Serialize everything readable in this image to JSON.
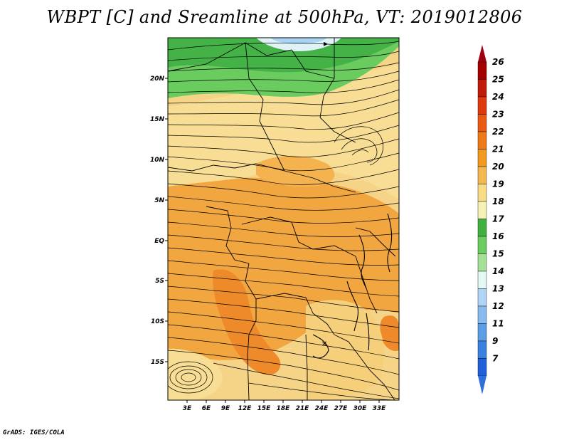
{
  "title": "WBPT [C] and Sreamline at 500hPa, VT: 2019012806",
  "footer": "GrADS: IGES/COLA",
  "map": {
    "lon_range": [
      0,
      36
    ],
    "lat_range": [
      -20,
      25
    ],
    "lon_ticks": [
      "3E",
      "6E",
      "9E",
      "12E",
      "15E",
      "18E",
      "21E",
      "24E",
      "27E",
      "30E",
      "33E"
    ],
    "lat_ticks": [
      "20N",
      "15N",
      "10N",
      "5N",
      "EQ",
      "5S",
      "10S",
      "15S"
    ],
    "fill_regions": [
      {
        "name": "north-green",
        "value": 17
      },
      {
        "name": "central-yellow",
        "value": 19
      },
      {
        "name": "central-orange",
        "value": 21
      },
      {
        "name": "south-hotspot",
        "value": 22
      },
      {
        "name": "east-hotspot",
        "value": 22
      },
      {
        "name": "southwest-vortex",
        "value": 19
      },
      {
        "name": "north-cool-strip",
        "value": 15
      }
    ],
    "streamline_direction": "eastward",
    "vortex_marker": "×"
  },
  "colorbar": {
    "labels": [
      "26",
      "25",
      "24",
      "23",
      "22",
      "21",
      "20",
      "19",
      "18",
      "17",
      "16",
      "15",
      "14",
      "13",
      "12",
      "11",
      "9",
      "7"
    ],
    "colors": [
      "#a50000",
      "#c01a0a",
      "#de3a0e",
      "#ea5a12",
      "#f07818",
      "#f29a20",
      "#f4b850",
      "#f8dc86",
      "#f6f2b6",
      "#40b040",
      "#6ccc62",
      "#a4e096",
      "#e4f8f6",
      "#b0d4f6",
      "#88bcf0",
      "#5c9ee6",
      "#3a80e0",
      "#2060d8"
    ],
    "top_arrow_color": "#a00010",
    "bottom_arrow_color": "#2d6fdb"
  }
}
